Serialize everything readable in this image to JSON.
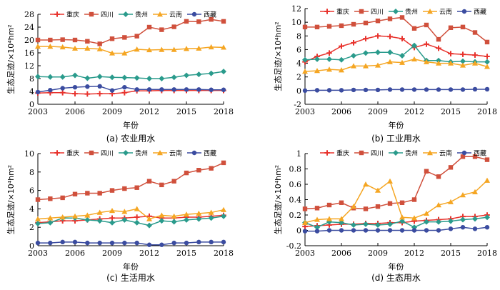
{
  "legend_labels": [
    "重庆",
    "四川",
    "贵州",
    "云南",
    "西藏"
  ],
  "series_colors": [
    "#e8332d",
    "#d0503c",
    "#2a9b8c",
    "#f5a623",
    "#3b4ca0"
  ],
  "chart_data": [
    {
      "type": "line",
      "caption": "(a) 农业用水",
      "xlabel": "年份",
      "ylabel": "生态足迹/×10⁴hm²",
      "x": [
        2003,
        2004,
        2005,
        2006,
        2007,
        2008,
        2009,
        2010,
        2011,
        2012,
        2013,
        2014,
        2015,
        2016,
        2017,
        2018
      ],
      "xticks": [
        2003,
        2006,
        2009,
        2012,
        2015,
        2018
      ],
      "ylim": [
        0,
        28
      ],
      "yticks": [
        0,
        4,
        8,
        12,
        16,
        20,
        24,
        28
      ],
      "series": [
        {
          "name": "重庆",
          "values": [
            3.5,
            3.6,
            3.6,
            3.3,
            3.2,
            3.3,
            3.3,
            3.6,
            4.2,
            4.2,
            4.3,
            4.3,
            4.3,
            4.3,
            4.3,
            4.3
          ]
        },
        {
          "name": "四川",
          "values": [
            20.0,
            20.0,
            20.1,
            20.0,
            19.6,
            18.8,
            20.4,
            20.8,
            21.2,
            24.0,
            23.2,
            24.1,
            25.8,
            25.7,
            26.4,
            25.8
          ]
        },
        {
          "name": "贵州",
          "values": [
            8.6,
            8.5,
            8.5,
            9.0,
            8.1,
            8.6,
            8.4,
            8.3,
            8.2,
            8.0,
            8.0,
            8.4,
            9.0,
            9.3,
            9.6,
            10.2
          ]
        },
        {
          "name": "云南",
          "values": [
            18.0,
            18.0,
            17.8,
            17.4,
            17.4,
            17.2,
            15.9,
            15.9,
            17.1,
            16.9,
            17.0,
            17.0,
            17.3,
            17.4,
            17.8,
            17.7
          ]
        },
        {
          "name": "西藏",
          "values": [
            3.8,
            4.4,
            5.0,
            5.3,
            5.5,
            5.6,
            4.3,
            5.3,
            4.6,
            4.6,
            4.6,
            4.6,
            4.6,
            4.6,
            4.5,
            4.5
          ]
        }
      ]
    },
    {
      "type": "line",
      "caption": "(b) 工业用水",
      "xlabel": "年份",
      "ylabel": "生态足迹/×10⁴hm²",
      "x": [
        2003,
        2004,
        2005,
        2006,
        2007,
        2008,
        2009,
        2010,
        2011,
        2012,
        2013,
        2014,
        2015,
        2016,
        2017,
        2018
      ],
      "xticks": [
        2003,
        2006,
        2009,
        2012,
        2015,
        2018
      ],
      "ylim": [
        -2,
        12
      ],
      "yticks": [
        -2,
        0,
        2,
        4,
        6,
        8,
        10,
        12
      ],
      "series": [
        {
          "name": "重庆",
          "values": [
            4.2,
            5.0,
            5.5,
            6.5,
            7.0,
            7.6,
            8.0,
            7.9,
            7.6,
            6.3,
            6.8,
            6.2,
            5.4,
            5.3,
            5.2,
            5.0
          ]
        },
        {
          "name": "四川",
          "values": [
            9.3,
            9.3,
            9.4,
            9.5,
            9.7,
            9.9,
            10.2,
            10.5,
            10.7,
            9.1,
            9.6,
            7.5,
            9.2,
            9.3,
            8.5,
            7.1
          ]
        },
        {
          "name": "贵州",
          "values": [
            4.5,
            4.6,
            4.6,
            4.5,
            5.1,
            5.5,
            5.6,
            5.6,
            5.1,
            6.6,
            4.4,
            4.4,
            4.2,
            4.3,
            4.2,
            4.2
          ]
        },
        {
          "name": "云南",
          "values": [
            2.8,
            2.9,
            3.1,
            3.0,
            3.6,
            3.6,
            3.7,
            4.2,
            4.1,
            4.6,
            4.2,
            4.0,
            4.0,
            3.7,
            4.0,
            3.5
          ]
        },
        {
          "name": "西藏",
          "values": [
            0.0,
            0.05,
            0.05,
            0.05,
            0.1,
            0.1,
            0.1,
            0.15,
            0.15,
            0.15,
            0.15,
            0.15,
            0.15,
            0.15,
            0.2,
            0.2
          ]
        }
      ]
    },
    {
      "type": "line",
      "caption": "(c) 生活用水",
      "xlabel": "年份",
      "ylabel": "生态足迹/×10⁴hm²",
      "x": [
        2003,
        2004,
        2005,
        2006,
        2007,
        2008,
        2009,
        2010,
        2011,
        2012,
        2013,
        2014,
        2015,
        2016,
        2017,
        2018
      ],
      "xticks": [
        2003,
        2006,
        2009,
        2012,
        2015,
        2018
      ],
      "ylim": [
        0,
        10
      ],
      "yticks": [
        0,
        2,
        4,
        6,
        8,
        10
      ],
      "series": [
        {
          "name": "重庆",
          "values": [
            2.5,
            2.6,
            2.7,
            2.7,
            2.8,
            2.9,
            3.0,
            3.0,
            3.1,
            3.2,
            3.0,
            3.0,
            3.1,
            3.1,
            3.2,
            3.3
          ]
        },
        {
          "name": "四川",
          "values": [
            5.0,
            5.1,
            5.2,
            5.6,
            5.7,
            5.7,
            6.0,
            6.2,
            6.3,
            7.0,
            6.6,
            7.0,
            7.9,
            8.2,
            8.4,
            9.0
          ]
        },
        {
          "name": "贵州",
          "values": [
            2.4,
            2.5,
            3.0,
            3.0,
            2.8,
            2.7,
            2.5,
            2.8,
            2.5,
            2.2,
            2.7,
            2.6,
            2.8,
            2.9,
            3.0,
            3.2
          ]
        },
        {
          "name": "云南",
          "values": [
            2.9,
            3.0,
            3.1,
            3.2,
            3.3,
            3.6,
            3.8,
            3.7,
            4.0,
            2.9,
            3.3,
            3.2,
            3.4,
            3.5,
            3.6,
            3.9
          ]
        },
        {
          "name": "西藏",
          "values": [
            0.3,
            0.3,
            0.4,
            0.4,
            0.3,
            0.3,
            0.3,
            0.3,
            0.3,
            0.1,
            0.1,
            0.3,
            0.3,
            0.4,
            0.4,
            0.4
          ]
        }
      ]
    },
    {
      "type": "line",
      "caption": "(d) 生态用水",
      "xlabel": "年份",
      "ylabel": "生态足迹/×10⁴hm²",
      "x": [
        2003,
        2004,
        2005,
        2006,
        2007,
        2008,
        2009,
        2010,
        2011,
        2012,
        2013,
        2014,
        2015,
        2016,
        2017,
        2018
      ],
      "xticks": [
        2003,
        2006,
        2009,
        2012,
        2015,
        2018
      ],
      "ylim": [
        -0.2,
        1.0
      ],
      "yticks": [
        -0.2,
        0,
        0.2,
        0.4,
        0.6,
        0.8,
        1.0
      ],
      "series": [
        {
          "name": "重庆",
          "values": [
            0.05,
            0.06,
            0.07,
            0.08,
            0.08,
            0.09,
            0.09,
            0.1,
            0.1,
            0.12,
            0.13,
            0.14,
            0.15,
            0.18,
            0.18,
            0.2
          ]
        },
        {
          "name": "四川",
          "values": [
            0.28,
            0.29,
            0.33,
            0.36,
            0.29,
            0.28,
            0.31,
            0.35,
            0.36,
            0.4,
            0.77,
            0.7,
            0.82,
            0.96,
            0.96,
            0.92
          ]
        },
        {
          "name": "贵州",
          "values": [
            0.1,
            0.04,
            0.11,
            0.1,
            0.07,
            0.08,
            0.07,
            0.08,
            0.12,
            0.04,
            0.11,
            0.11,
            0.12,
            0.14,
            0.15,
            0.17
          ]
        },
        {
          "name": "云南",
          "values": [
            0.1,
            0.14,
            0.15,
            0.15,
            0.31,
            0.6,
            0.52,
            0.64,
            0.17,
            0.16,
            0.22,
            0.33,
            0.37,
            0.46,
            0.5,
            0.65
          ]
        },
        {
          "name": "西藏",
          "values": [
            -0.01,
            -0.01,
            0.0,
            0.0,
            0.0,
            0.0,
            0.0,
            0.0,
            0.0,
            0.0,
            0.0,
            0.0,
            0.02,
            0.04,
            0.02,
            0.04
          ]
        }
      ]
    }
  ]
}
